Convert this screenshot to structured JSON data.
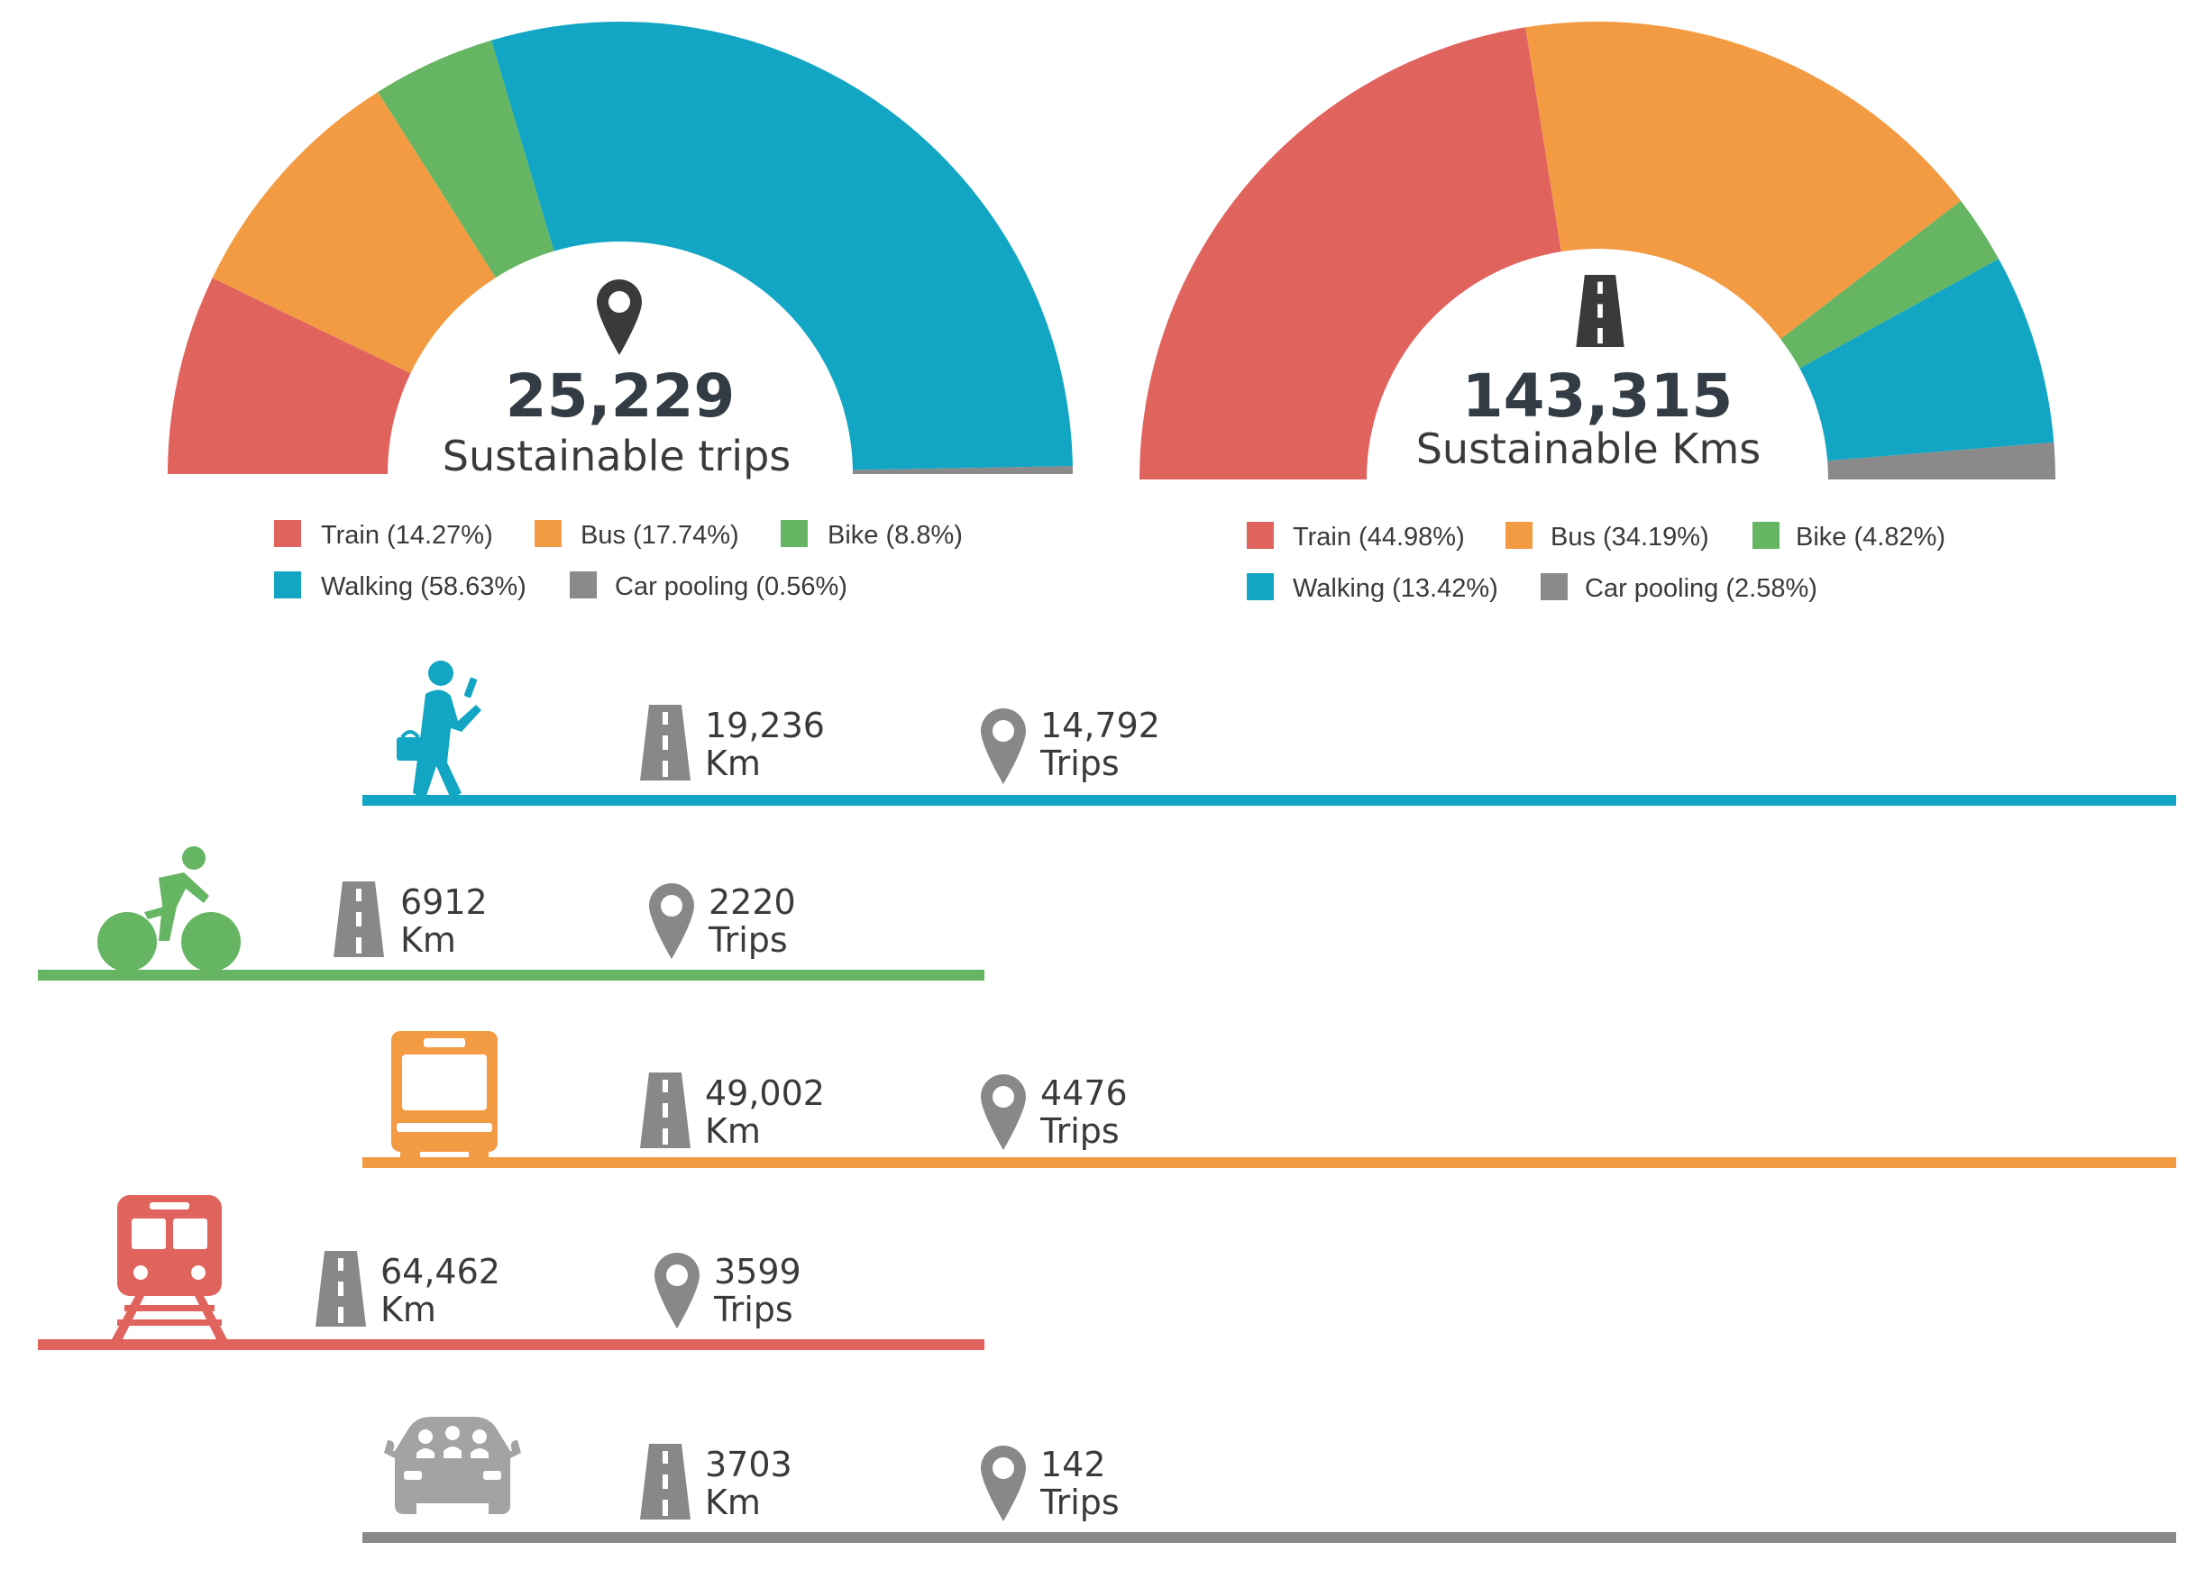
{
  "colors": {
    "train": "#e1635e",
    "bus": "#f29b42",
    "bike": "#65b563",
    "walking": "#12a6c4",
    "car_pooling": "#8a8a8a",
    "icon_dark": "#3a3a3a",
    "icon_grey": "#888888"
  },
  "chart_data": [
    {
      "type": "pie",
      "variant": "half-donut",
      "center_icon": "location-pin-icon",
      "total": "25,229",
      "title": "Sustainable trips",
      "slices": [
        {
          "key": "train",
          "label": "Train (14.27%)",
          "value": 14.27,
          "color": "#e1635e"
        },
        {
          "key": "bus",
          "label": "Bus (17.74%)",
          "value": 17.74,
          "color": "#f29b42"
        },
        {
          "key": "bike",
          "label": "Bike (8.8%)",
          "value": 8.8,
          "color": "#65b563"
        },
        {
          "key": "walking",
          "label": "Walking (58.63%)",
          "value": 58.63,
          "color": "#12a6c4"
        },
        {
          "key": "car_pooling",
          "label": "Car pooling (0.56%)",
          "value": 0.56,
          "color": "#8a8a8a"
        }
      ]
    },
    {
      "type": "pie",
      "variant": "half-donut",
      "center_icon": "road-icon",
      "total": "143,315",
      "title": "Sustainable Kms",
      "slices": [
        {
          "key": "train",
          "label": "Train (44.98%)",
          "value": 44.98,
          "color": "#e1635e"
        },
        {
          "key": "bus",
          "label": "Bus (34.19%)",
          "value": 34.19,
          "color": "#f29b42"
        },
        {
          "key": "bike",
          "label": "Bike (4.82%)",
          "value": 4.82,
          "color": "#65b563"
        },
        {
          "key": "walking",
          "label": "Walking (13.42%)",
          "value": 13.42,
          "color": "#12a6c4"
        },
        {
          "key": "car_pooling",
          "label": "Car pooling (2.58%)",
          "value": 2.58,
          "color": "#8a8a8a"
        }
      ]
    }
  ],
  "modes": [
    {
      "key": "walking",
      "icon": "walking-person-icon",
      "color": "#12a6c4",
      "km": "19,236",
      "km_unit": "Km",
      "trips": "14,792",
      "trips_unit": "Trips"
    },
    {
      "key": "bike",
      "icon": "cyclist-icon",
      "color": "#65b563",
      "km": "6912",
      "km_unit": "Km",
      "trips": "2220",
      "trips_unit": "Trips"
    },
    {
      "key": "bus",
      "icon": "bus-icon",
      "color": "#f29b42",
      "km": "49,002",
      "km_unit": "Km",
      "trips": "4476",
      "trips_unit": "Trips"
    },
    {
      "key": "train",
      "icon": "train-icon",
      "color": "#e1635e",
      "km": "64,462",
      "km_unit": "Km",
      "trips": "3599",
      "trips_unit": "Trips"
    },
    {
      "key": "car_pooling",
      "icon": "car-icon",
      "color": "#8a8a8a",
      "km": "3703",
      "km_unit": "Km",
      "trips": "142",
      "trips_unit": "Trips"
    }
  ]
}
